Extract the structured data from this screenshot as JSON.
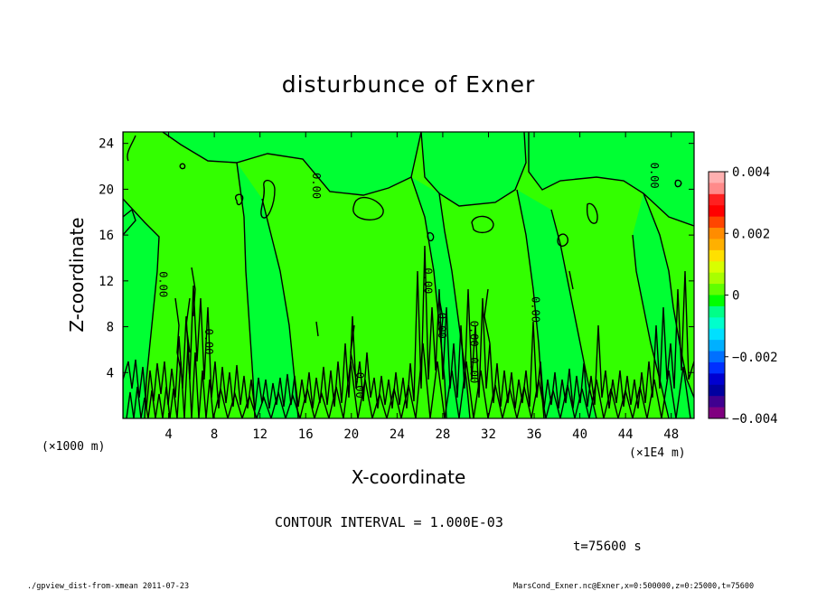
{
  "chart_data": {
    "type": "heatmap",
    "title": "disturbunce of Exner",
    "xlabel": "X-coordinate",
    "ylabel": "Z-coordinate",
    "x_unit": "(×1E4 m)",
    "y_unit": "(×1000 m)",
    "xlim": [
      0,
      50
    ],
    "ylim": [
      0,
      25
    ],
    "x_ticks": [
      4,
      8,
      12,
      16,
      20,
      24,
      28,
      32,
      36,
      40,
      44,
      48
    ],
    "y_ticks": [
      4,
      8,
      12,
      16,
      20,
      24
    ],
    "contour_labels": [
      {
        "text": "0.00",
        "x": 3.2,
        "y": 11.7
      },
      {
        "text": "0.00",
        "x": 7.2,
        "y": 6.7
      },
      {
        "text": "0.00",
        "x": 16.6,
        "y": 20.3
      },
      {
        "text": "0.00",
        "x": 20.4,
        "y": 2.9
      },
      {
        "text": "0.00",
        "x": 26.4,
        "y": 12.0
      },
      {
        "text": "0.00",
        "x": 27.6,
        "y": 8.1
      },
      {
        "text": "0.00",
        "x": 30.4,
        "y": 7.4
      },
      {
        "text": "0.00",
        "x": 30.4,
        "y": 4.2
      },
      {
        "text": "0.00",
        "x": 35.8,
        "y": 9.5
      },
      {
        "text": "0.00",
        "x": 46.2,
        "y": 21.2
      }
    ],
    "colorbar": {
      "min": -0.004,
      "max": 0.004,
      "tick_labels": [
        "0.004",
        "0.002",
        "0",
        "−0.002",
        "−0.004"
      ],
      "tick_values": [
        0.004,
        0.002,
        0,
        -0.002,
        -0.004
      ],
      "colors_top_to_bottom": [
        "#ffb0b0",
        "#ff8a8a",
        "#ff2020",
        "#ff0000",
        "#ff4500",
        "#ff8c00",
        "#ffb000",
        "#ffe000",
        "#d8ff00",
        "#a8ff00",
        "#60ff00",
        "#00ff00",
        "#00ff88",
        "#00ffcc",
        "#00e0ff",
        "#00b0ff",
        "#0070ff",
        "#0030ff",
        "#0000d0",
        "#0000a0",
        "#400090",
        "#800080"
      ]
    },
    "background_color": "#33ff00",
    "lighter_region_color": "#00ff33",
    "annotations": {
      "contour_interval": "CONTOUR INTERVAL = 1.000E-03",
      "time": "t=75600 s",
      "footer_left": "./gpview_dist-from-xmean  2011-07-23",
      "footer_right": "MarsCond_Exner.nc@Exner,x=0:500000,z=0:25000,t=75600"
    }
  }
}
